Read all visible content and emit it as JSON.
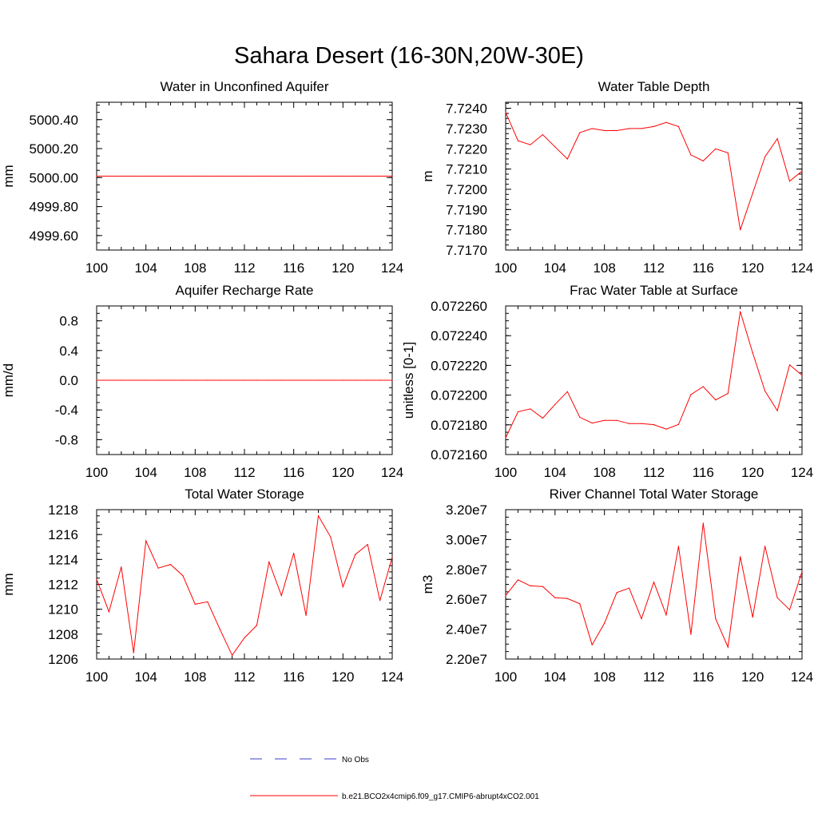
{
  "title": "Sahara Desert (16-30N,20W-30E)",
  "legend": {
    "entries": [
      {
        "label": "No Obs",
        "color": "#3b3bc8",
        "dash": true
      },
      {
        "label": "b.e21.BCO2x4cmip6.f09_g17.CMIP6-abrupt4xCO2.001",
        "color": "#ff0000",
        "dash": false
      }
    ]
  },
  "chart_data": [
    {
      "type": "line",
      "title": "Water in Unconfined Aquifer",
      "ylabel": "mm",
      "xlim": [
        100,
        124
      ],
      "xticks": [
        100,
        104,
        108,
        112,
        116,
        120,
        124
      ],
      "xticklabels": [
        "100",
        "104",
        "108",
        "112",
        "116",
        "120",
        "124"
      ],
      "ylim": [
        4999.5,
        5000.52
      ],
      "yticks": [
        4999.6,
        4999.8,
        5000.0,
        5000.2,
        5000.4
      ],
      "yticklabels": [
        "4999.60",
        "4999.80",
        "5000.00",
        "5000.20",
        "5000.40"
      ],
      "series": [
        {
          "name": "b.e21.BCO2x4cmip6.f09_g17.CMIP6-abrupt4xCO2.001",
          "color": "#ff0000",
          "x": [
            100,
            101,
            102,
            103,
            104,
            105,
            106,
            107,
            108,
            109,
            110,
            111,
            112,
            113,
            114,
            115,
            116,
            117,
            118,
            119,
            120,
            121,
            122,
            123,
            124
          ],
          "values": [
            5000.01,
            5000.01,
            5000.01,
            5000.01,
            5000.01,
            5000.01,
            5000.01,
            5000.01,
            5000.01,
            5000.01,
            5000.01,
            5000.01,
            5000.01,
            5000.01,
            5000.01,
            5000.01,
            5000.01,
            5000.01,
            5000.01,
            5000.01,
            5000.01,
            5000.01,
            5000.01,
            5000.01,
            5000.01
          ]
        }
      ]
    },
    {
      "type": "line",
      "title": "Water Table Depth",
      "ylabel": "m",
      "xlim": [
        100,
        124
      ],
      "xticks": [
        100,
        104,
        108,
        112,
        116,
        120,
        124
      ],
      "xticklabels": [
        "100",
        "104",
        "108",
        "112",
        "116",
        "120",
        "124"
      ],
      "ylim": [
        7.717,
        7.7243
      ],
      "yticks": [
        7.717,
        7.718,
        7.719,
        7.72,
        7.721,
        7.722,
        7.723,
        7.724
      ],
      "yticklabels": [
        "7.7170",
        "7.7180",
        "7.7190",
        "7.7200",
        "7.7210",
        "7.7220",
        "7.7230",
        "7.7240"
      ],
      "series": [
        {
          "name": "b.e21.BCO2x4cmip6.f09_g17.CMIP6-abrupt4xCO2.001",
          "color": "#ff0000",
          "x": [
            100,
            101,
            102,
            103,
            104,
            105,
            106,
            107,
            108,
            109,
            110,
            111,
            112,
            113,
            114,
            115,
            116,
            117,
            118,
            119,
            120,
            121,
            122,
            123,
            124
          ],
          "values": [
            7.7238,
            7.7224,
            7.7222,
            7.7227,
            7.7221,
            7.7215,
            7.7228,
            7.723,
            7.7229,
            7.7229,
            7.723,
            7.723,
            7.7231,
            7.7233,
            7.7231,
            7.7217,
            7.7214,
            7.722,
            7.7218,
            7.718,
            7.7198,
            7.7216,
            7.7225,
            7.7204,
            7.7209
          ]
        }
      ]
    },
    {
      "type": "line",
      "title": "Aquifer Recharge Rate",
      "ylabel": "mm/d",
      "xlim": [
        100,
        124
      ],
      "xticks": [
        100,
        104,
        108,
        112,
        116,
        120,
        124
      ],
      "xticklabels": [
        "100",
        "104",
        "108",
        "112",
        "116",
        "120",
        "124"
      ],
      "ylim": [
        -1.0,
        1.0
      ],
      "yticks": [
        -0.8,
        -0.4,
        0.0,
        0.4,
        0.8
      ],
      "yticklabels": [
        "-0.8",
        "-0.4",
        "0.0",
        "0.4",
        "0.8"
      ],
      "series": [
        {
          "name": "b.e21.BCO2x4cmip6.f09_g17.CMIP6-abrupt4xCO2.001",
          "color": "#ff0000",
          "x": [
            100,
            101,
            102,
            103,
            104,
            105,
            106,
            107,
            108,
            109,
            110,
            111,
            112,
            113,
            114,
            115,
            116,
            117,
            118,
            119,
            120,
            121,
            122,
            123,
            124
          ],
          "values": [
            0,
            0,
            0,
            0,
            0,
            0,
            0,
            0,
            0,
            0,
            0,
            0,
            0,
            0,
            0,
            0,
            0,
            0,
            0,
            0,
            0,
            0,
            0,
            0,
            0
          ]
        }
      ]
    },
    {
      "type": "line",
      "title": "Frac Water Table at Surface",
      "ylabel": "unitless [0-1]",
      "xlim": [
        100,
        124
      ],
      "xticks": [
        100,
        104,
        108,
        112,
        116,
        120,
        124
      ],
      "xticklabels": [
        "100",
        "104",
        "108",
        "112",
        "116",
        "120",
        "124"
      ],
      "ylim": [
        0.07216,
        0.07226
      ],
      "yticks": [
        0.07216,
        0.07218,
        0.0722,
        0.07222,
        0.07224,
        0.07226
      ],
      "yticklabels": [
        "0.072160",
        "0.072180",
        "0.072200",
        "0.072220",
        "0.072240",
        "0.072260"
      ],
      "series": [
        {
          "name": "b.e21.BCO2x4cmip6.f09_g17.CMIP6-abrupt4xCO2.001",
          "color": "#ff0000",
          "x": [
            100,
            101,
            102,
            103,
            104,
            105,
            106,
            107,
            108,
            109,
            110,
            111,
            112,
            113,
            114,
            115,
            116,
            117,
            118,
            119,
            120,
            121,
            122,
            123,
            124
          ],
          "values": [
            0.0721712,
            0.0721888,
            0.0721907,
            0.0721845,
            0.0721937,
            0.0722023,
            0.0721851,
            0.0721812,
            0.072183,
            0.072183,
            0.0721808,
            0.0721808,
            0.0721801,
            0.0721771,
            0.0721802,
            0.0722004,
            0.0722057,
            0.0721968,
            0.0722011,
            0.0722562,
            0.0722285,
            0.0722028,
            0.0721895,
            0.0722203,
            0.0722134
          ]
        }
      ]
    },
    {
      "type": "line",
      "title": "Total Water Storage",
      "ylabel": "mm",
      "xlim": [
        100,
        124
      ],
      "xticks": [
        100,
        104,
        108,
        112,
        116,
        120,
        124
      ],
      "xticklabels": [
        "100",
        "104",
        "108",
        "112",
        "116",
        "120",
        "124"
      ],
      "ylim": [
        1206,
        1218
      ],
      "yticks": [
        1206,
        1208,
        1210,
        1212,
        1214,
        1216,
        1218
      ],
      "yticklabels": [
        "1206",
        "1208",
        "1210",
        "1212",
        "1214",
        "1216",
        "1218"
      ],
      "series": [
        {
          "name": "b.e21.BCO2x4cmip6.f09_g17.CMIP6-abrupt4xCO2.001",
          "color": "#ff0000",
          "x": [
            100,
            101,
            102,
            103,
            104,
            105,
            106,
            107,
            108,
            109,
            110,
            111,
            112,
            113,
            114,
            115,
            116,
            117,
            118,
            119,
            120,
            121,
            122,
            123,
            124
          ],
          "values": [
            1212.4,
            1209.8,
            1213.4,
            1206.5,
            1215.5,
            1213.3,
            1213.6,
            1212.7,
            1210.4,
            1210.6,
            1208.4,
            1206.3,
            1207.7,
            1208.7,
            1213.8,
            1211.1,
            1214.5,
            1209.5,
            1217.5,
            1215.8,
            1211.8,
            1214.4,
            1215.2,
            1210.7,
            1214.2
          ]
        }
      ]
    },
    {
      "type": "line",
      "title": "River Channel Total Water Storage",
      "ylabel": "m3",
      "xlim": [
        100,
        124
      ],
      "xticks": [
        100,
        104,
        108,
        112,
        116,
        120,
        124
      ],
      "xticklabels": [
        "100",
        "104",
        "108",
        "112",
        "116",
        "120",
        "124"
      ],
      "ylim": [
        22000000,
        32000000
      ],
      "yticks": [
        22000000,
        24000000,
        26000000,
        28000000,
        30000000,
        32000000
      ],
      "yticklabels": [
        "2.20e7",
        "2.40e7",
        "2.60e7",
        "2.80e7",
        "3.00e7",
        "3.20e7"
      ],
      "series": [
        {
          "name": "b.e21.BCO2x4cmip6.f09_g17.CMIP6-abrupt4xCO2.001",
          "color": "#ff0000",
          "x": [
            100,
            101,
            102,
            103,
            104,
            105,
            106,
            107,
            108,
            109,
            110,
            111,
            112,
            113,
            114,
            115,
            116,
            117,
            118,
            119,
            120,
            121,
            122,
            123,
            124
          ],
          "values": [
            26250000,
            27300000,
            26900000,
            26850000,
            26100000,
            26050000,
            25700000,
            22950000,
            24400000,
            26450000,
            26750000,
            24700000,
            27150000,
            24950000,
            29550000,
            23650000,
            31100000,
            24700000,
            22800000,
            28850000,
            24800000,
            29550000,
            26100000,
            25300000,
            27850000
          ]
        }
      ]
    }
  ]
}
